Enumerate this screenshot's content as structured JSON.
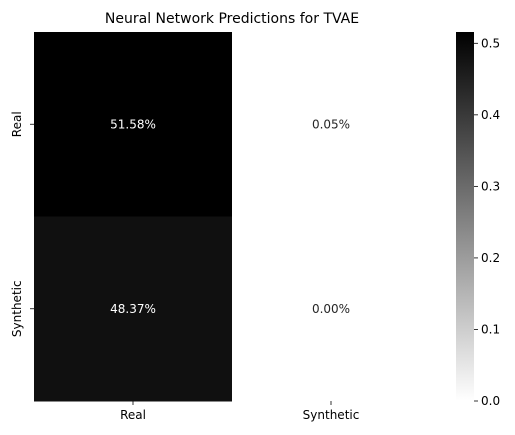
{
  "chart_data": {
    "type": "heatmap",
    "title": "Neural Network Predictions for TVAE",
    "xlabel": "",
    "ylabel": "",
    "row_labels": [
      "Real",
      "Synthetic"
    ],
    "col_labels": [
      "Real",
      "Synthetic"
    ],
    "values": [
      [
        51.58,
        0.05
      ],
      [
        48.37,
        0.0
      ]
    ],
    "cell_labels": [
      [
        "51.58%",
        "0.05%"
      ],
      [
        "48.37%",
        "0.00%"
      ]
    ],
    "colorbar": {
      "range": [
        0.0,
        0.5158
      ],
      "ticks": [
        0.0,
        0.1,
        0.2,
        0.3,
        0.4,
        0.5
      ],
      "tick_labels": [
        "0.0",
        "0.1",
        "0.2",
        "0.3",
        "0.4",
        "0.5"
      ]
    },
    "colormap": {
      "low": "#ffffff",
      "high": "#000000"
    },
    "colors": {
      "dark_text": "#ffffff",
      "light_text": "#262626",
      "axis": "#000000"
    }
  }
}
